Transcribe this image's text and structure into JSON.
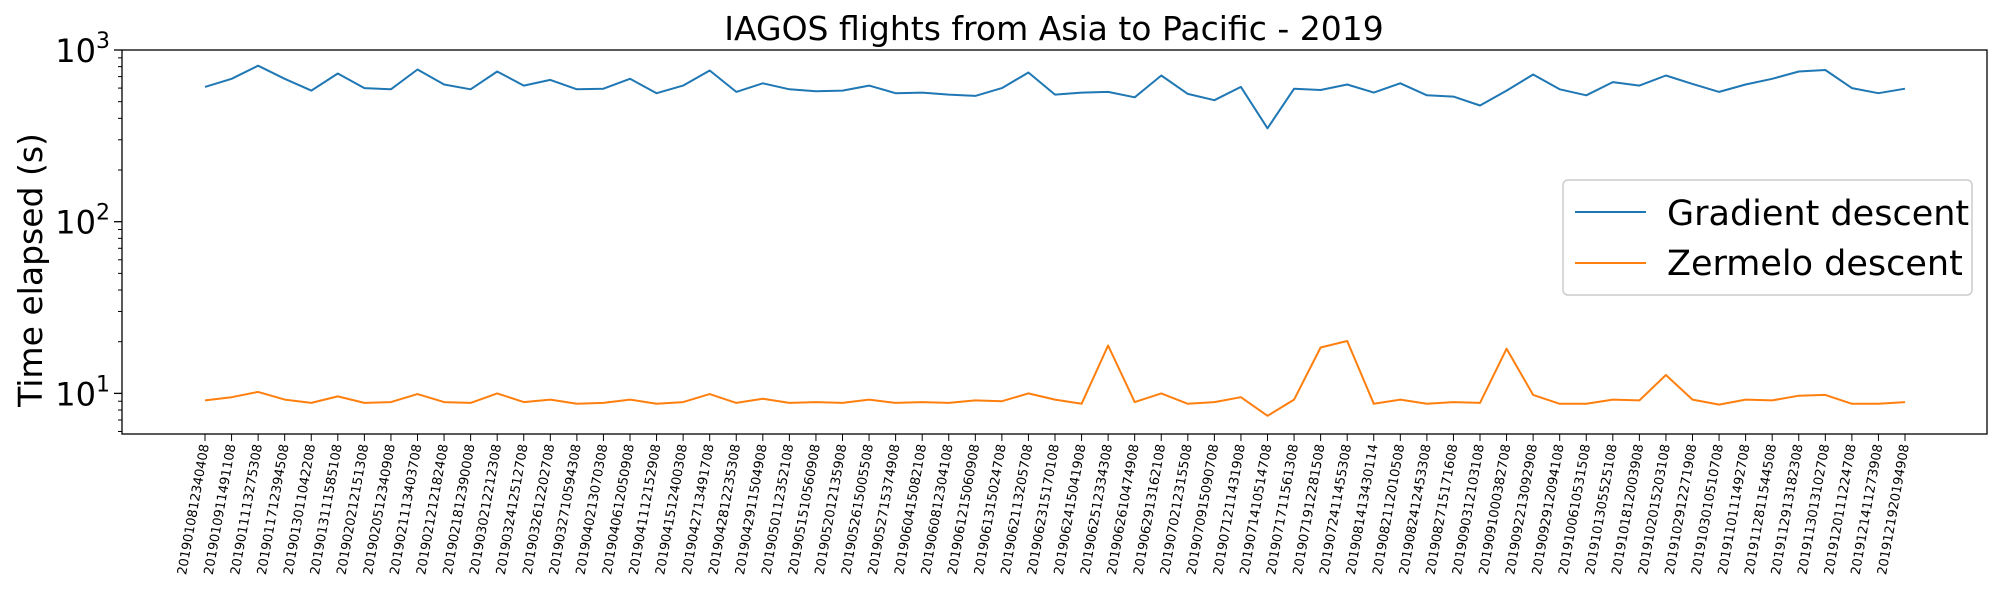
{
  "chart_data": {
    "type": "line",
    "title": "IAGOS flights from Asia to Pacific - 2019",
    "xlabel": "",
    "ylabel": "Time elapsed (s)",
    "yscale": "log",
    "ylim": [
      5.8,
      1000
    ],
    "yticks": [
      {
        "value": 10,
        "base": "10",
        "exp": "1"
      },
      {
        "value": 100,
        "base": "10",
        "exp": "2"
      },
      {
        "value": 1000,
        "base": "10",
        "exp": "3"
      }
    ],
    "legend_position": "center-right",
    "grid": false,
    "categories": [
      "2019010812340408",
      "2019010911491108",
      "2019011113275308",
      "2019011712394508",
      "2019013011042208",
      "2019013111585108",
      "2019020212151308",
      "2019020512340908",
      "2019021113403708",
      "2019021212182408",
      "2019021812390008",
      "2019030212212308",
      "2019032412512708",
      "2019032612202708",
      "2019032710594308",
      "2019040213070308",
      "2019040612050908",
      "2019041112152908",
      "2019041512400308",
      "2019042713491708",
      "2019042812235308",
      "2019042911504908",
      "2019050112352108",
      "2019051510560908",
      "2019052012135908",
      "2019052615005508",
      "2019052715374908",
      "2019060415082108",
      "2019060812304108",
      "2019061215060908",
      "2019061315024708",
      "2019062113205708",
      "2019062315170108",
      "2019062415041908",
      "2019062512334308",
      "2019062610474908",
      "2019062913162108",
      "2019070212315508",
      "2019070915090708",
      "2019071211431908",
      "2019071410514708",
      "2019071711561308",
      "2019071912281508",
      "2019072411455308",
      "2019081413430114",
      "2019082112010508",
      "2019082412453308",
      "2019082715171608",
      "2019090312103108",
      "2019091000382708",
      "2019092213092908",
      "2019092912094108",
      "2019100610531508",
      "2019101305525108",
      "2019101812003908",
      "2019102015203108",
      "2019102912271908",
      "2019103010510708",
      "2019110111492708",
      "2019112811544508",
      "2019112913182308",
      "2019113013102708",
      "2019120111224708",
      "2019121411273908",
      "2019121920194908"
    ],
    "series": [
      {
        "name": "Gradient descent",
        "color": "#1f77b4",
        "values": [
          610,
          680,
          810,
          680,
          580,
          730,
          600,
          590,
          770,
          630,
          590,
          750,
          620,
          670,
          590,
          595,
          680,
          560,
          620,
          760,
          570,
          640,
          590,
          575,
          580,
          620,
          560,
          565,
          550,
          540,
          600,
          740,
          550,
          565,
          570,
          530,
          710,
          555,
          510,
          610,
          350,
          595,
          585,
          630,
          565,
          640,
          545,
          535,
          475,
          580,
          720,
          590,
          545,
          650,
          620,
          710,
          635,
          570,
          630,
          680,
          750,
          765,
          600,
          560,
          595
        ]
      },
      {
        "name": "Zermelo descent",
        "color": "#ff7f0e",
        "values": [
          9.1,
          9.5,
          10.2,
          9.2,
          8.8,
          9.6,
          8.8,
          8.9,
          9.9,
          8.9,
          8.8,
          10.0,
          8.9,
          9.2,
          8.7,
          8.8,
          9.2,
          8.7,
          8.9,
          9.9,
          8.8,
          9.3,
          8.8,
          8.9,
          8.8,
          9.2,
          8.8,
          8.9,
          8.8,
          9.1,
          9.0,
          10.0,
          9.2,
          8.7,
          19.0,
          8.9,
          10.0,
          8.7,
          8.9,
          9.5,
          7.4,
          9.2,
          18.5,
          20.2,
          8.7,
          9.2,
          8.7,
          8.9,
          8.8,
          18.2,
          9.8,
          8.7,
          8.7,
          9.2,
          9.1,
          12.8,
          9.2,
          8.6,
          9.2,
          9.1,
          9.7,
          9.8,
          8.7,
          8.7,
          8.9
        ]
      }
    ]
  }
}
